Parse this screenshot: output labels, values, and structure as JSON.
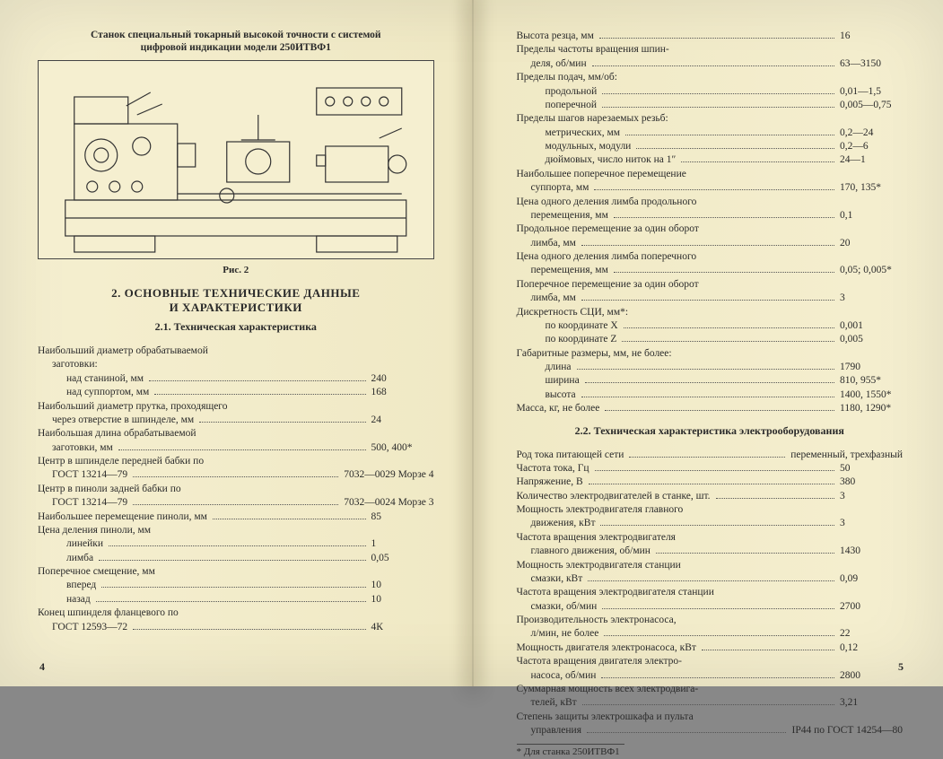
{
  "left": {
    "figure_title_lines": [
      "Станок специальный токарный высокой точности с системой",
      "цифровой индикации модели 250ИТВФ1"
    ],
    "figure_caption": "Рис. 2",
    "section_title_lines": [
      "2. ОСНОВНЫЕ ТЕХНИЧЕСКИЕ ДАННЫЕ",
      "И ХАРАКТЕРИСТИКИ"
    ],
    "subsection_title": "2.1. Техническая характеристика",
    "rows": [
      {
        "label": "Наибольший диаметр обрабатываемой",
        "val": "",
        "indent": 0,
        "nodots": true
      },
      {
        "label": "заготовки:",
        "val": "",
        "indent": 1,
        "nodots": true
      },
      {
        "label": "над станиной, мм",
        "val": "240",
        "indent": 2
      },
      {
        "label": "над суппортом, мм",
        "val": "168",
        "indent": 2
      },
      {
        "label": "Наибольший диаметр прутка, проходящего",
        "val": "",
        "indent": 0,
        "nodots": true
      },
      {
        "label": "через отверстие в шпинделе, мм",
        "val": "24",
        "indent": 1
      },
      {
        "label": "Наибольшая длина обрабатываемой",
        "val": "",
        "indent": 0,
        "nodots": true
      },
      {
        "label": "заготовки, мм",
        "val": "500, 400*",
        "indent": 1
      },
      {
        "label": "Центр в шпинделе передней бабки по",
        "val": "",
        "indent": 0,
        "nodots": true
      },
      {
        "label": "ГОСТ 13214—79",
        "val": "7032—0029 Морзе 4",
        "indent": 1
      },
      {
        "label": "Центр в пиноли задней бабки по",
        "val": "",
        "indent": 0,
        "nodots": true
      },
      {
        "label": "ГОСТ 13214—79",
        "val": "7032—0024 Морзе 3",
        "indent": 1
      },
      {
        "label": "Наибольшее перемещение пиноли, мм",
        "val": "85",
        "indent": 0
      },
      {
        "label": "Цена деления пиноли, мм",
        "val": "",
        "indent": 0,
        "nodots": true
      },
      {
        "label": "линейки",
        "val": "1",
        "indent": 2
      },
      {
        "label": "лимба",
        "val": "0,05",
        "indent": 2
      },
      {
        "label": "Поперечное смещение, мм",
        "val": "",
        "indent": 0,
        "nodots": true
      },
      {
        "label": "вперед",
        "val": "10",
        "indent": 2
      },
      {
        "label": "назад",
        "val": "10",
        "indent": 2
      },
      {
        "label": "Конец шпинделя фланцевого по",
        "val": "",
        "indent": 0,
        "nodots": true
      },
      {
        "label": "ГОСТ 12593—72",
        "val": "4К",
        "indent": 1
      }
    ],
    "page_number": "4"
  },
  "right": {
    "rows1": [
      {
        "label": "Высота резца, мм",
        "val": "16",
        "indent": 0
      },
      {
        "label": "Пределы частоты вращения шпин-",
        "val": "",
        "indent": 0,
        "nodots": true
      },
      {
        "label": "деля, об/мин",
        "val": "63—3150",
        "indent": 1
      },
      {
        "label": "Пределы подач, мм/об:",
        "val": "",
        "indent": 0,
        "nodots": true
      },
      {
        "label": "продольной",
        "val": "0,01—1,5",
        "indent": 2
      },
      {
        "label": "поперечной",
        "val": "0,005—0,75",
        "indent": 2
      },
      {
        "label": "Пределы шагов нарезаемых резьб:",
        "val": "",
        "indent": 0,
        "nodots": true
      },
      {
        "label": "метрических, мм",
        "val": "0,2—24",
        "indent": 2
      },
      {
        "label": "модульных, модули",
        "val": "0,2—6",
        "indent": 2
      },
      {
        "label": "дюймовых, число ниток на 1″",
        "val": "24—1",
        "indent": 2
      },
      {
        "label": "Наибольшее поперечное перемещение",
        "val": "",
        "indent": 0,
        "nodots": true
      },
      {
        "label": "суппорта, мм",
        "val": "170, 135*",
        "indent": 1
      },
      {
        "label": "Цена одного деления лимба продольного",
        "val": "",
        "indent": 0,
        "nodots": true
      },
      {
        "label": "перемещения, мм",
        "val": "0,1",
        "indent": 1
      },
      {
        "label": "Продольное перемещение за один оборот",
        "val": "",
        "indent": 0,
        "nodots": true
      },
      {
        "label": "лимба, мм",
        "val": "20",
        "indent": 1
      },
      {
        "label": "Цена одного деления лимба поперечного",
        "val": "",
        "indent": 0,
        "nodots": true
      },
      {
        "label": "перемещения, мм",
        "val": "0,05; 0,005*",
        "indent": 1
      },
      {
        "label": "Поперечное перемещение за один оборот",
        "val": "",
        "indent": 0,
        "nodots": true
      },
      {
        "label": "лимба, мм",
        "val": "3",
        "indent": 1
      },
      {
        "label": "Дискретность СЦИ, мм*:",
        "val": "",
        "indent": 0,
        "nodots": true
      },
      {
        "label": "по координате X",
        "val": "0,001",
        "indent": 2
      },
      {
        "label": "по координате Z",
        "val": "0,005",
        "indent": 2
      },
      {
        "label": "Габаритные размеры, мм, не более:",
        "val": "",
        "indent": 0,
        "nodots": true
      },
      {
        "label": "длина",
        "val": "1790",
        "indent": 2
      },
      {
        "label": "ширина",
        "val": "810, 955*",
        "indent": 2
      },
      {
        "label": "высота",
        "val": "1400, 1550*",
        "indent": 2
      },
      {
        "label": "Масса, кг, не более",
        "val": "1180, 1290*",
        "indent": 0
      }
    ],
    "subsection_title": "2.2. Техническая характеристика электрооборудования",
    "rows2": [
      {
        "label": "Род тока питающей сети",
        "val": "переменный, трехфазный",
        "indent": 0
      },
      {
        "label": "Частота тока, Гц",
        "val": "50",
        "indent": 0
      },
      {
        "label": "Напряжение, В",
        "val": "380",
        "indent": 0
      },
      {
        "label": "Количество электродвигателей в станке, шт.",
        "val": "3",
        "indent": 0
      },
      {
        "label": "Мощность электродвигателя главного",
        "val": "",
        "indent": 0,
        "nodots": true
      },
      {
        "label": "движения, кВт",
        "val": "3",
        "indent": 1
      },
      {
        "label": "Частота вращения электродвигателя",
        "val": "",
        "indent": 0,
        "nodots": true
      },
      {
        "label": "главного движения, об/мин",
        "val": "1430",
        "indent": 1
      },
      {
        "label": "Мощность электродвигателя станции",
        "val": "",
        "indent": 0,
        "nodots": true
      },
      {
        "label": "смазки, кВт",
        "val": "0,09",
        "indent": 1
      },
      {
        "label": "Частота вращения электродвигателя станции",
        "val": "",
        "indent": 0,
        "nodots": true
      },
      {
        "label": "смазки, об/мин",
        "val": "2700",
        "indent": 1
      },
      {
        "label": "Производительность электронасоса,",
        "val": "",
        "indent": 0,
        "nodots": true
      },
      {
        "label": "л/мин, не более",
        "val": "22",
        "indent": 1
      },
      {
        "label": "Мощность двигателя электронасоса, кВт",
        "val": "0,12",
        "indent": 0
      },
      {
        "label": "Частота вращения двигателя электро-",
        "val": "",
        "indent": 0,
        "nodots": true
      },
      {
        "label": "насоса, об/мин",
        "val": "2800",
        "indent": 1
      },
      {
        "label": "Суммарная мощность всех электродвига-",
        "val": "",
        "indent": 0,
        "nodots": true
      },
      {
        "label": "телей, кВт",
        "val": "3,21",
        "indent": 1
      },
      {
        "label": "Степень защиты электрошкафа и пульта",
        "val": "",
        "indent": 0,
        "nodots": true
      },
      {
        "label": "управления",
        "val": "IP44 по ГОСТ 14254—80",
        "indent": 1
      }
    ],
    "footnote": "* Для станка 250ИТВФ1",
    "page_number": "5"
  }
}
